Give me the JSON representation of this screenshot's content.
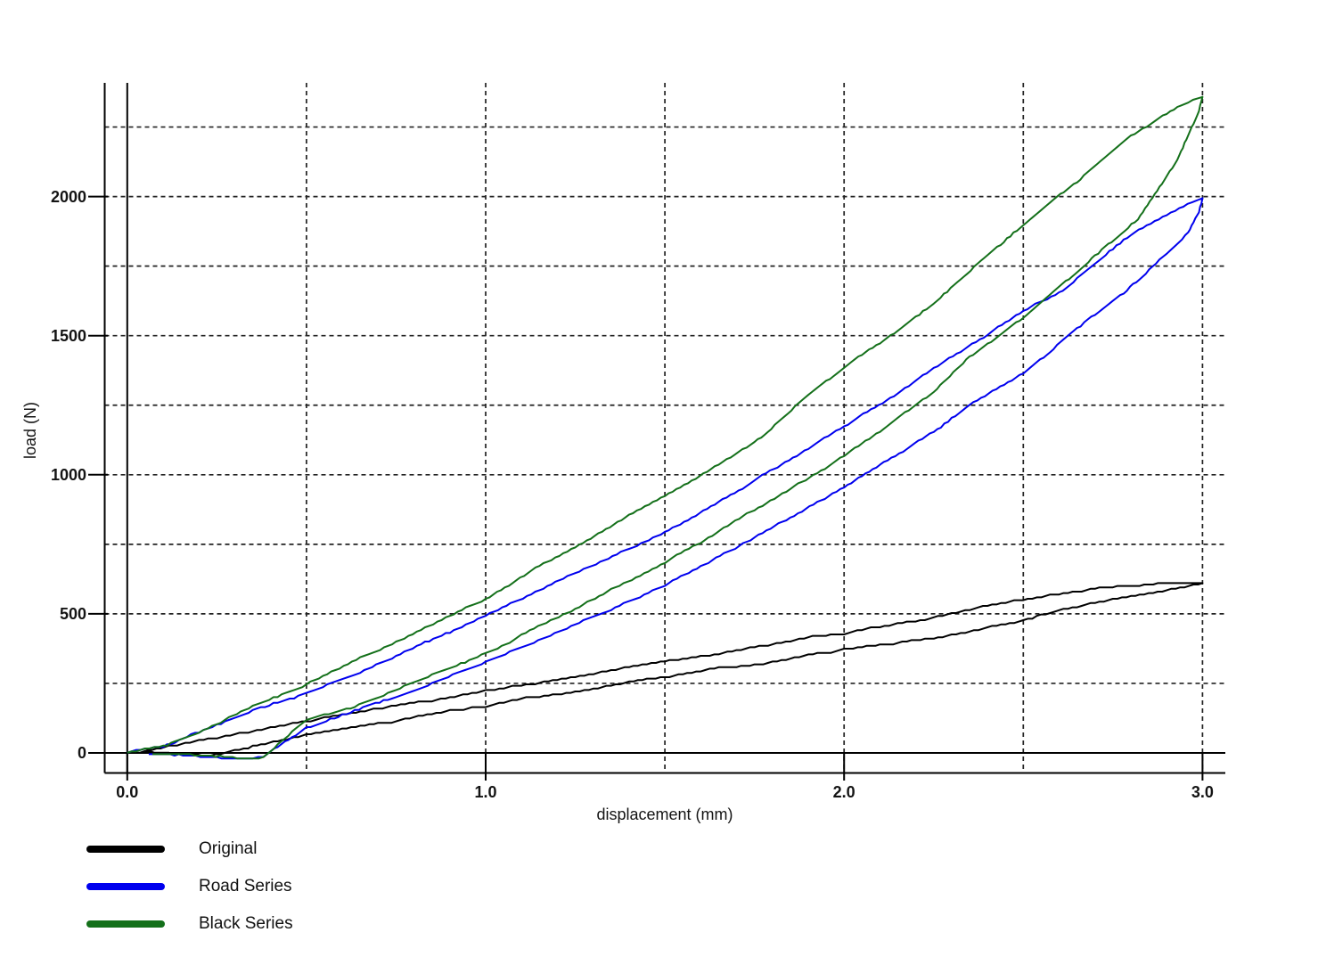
{
  "figure": {
    "background": "#ffffff",
    "axis_color": "#000000",
    "grid_color": "#222222",
    "text_color": "#141414"
  },
  "chart_data": {
    "type": "line",
    "title": "",
    "xlabel": "displacement (mm)",
    "ylabel": "load (N)",
    "xlim": [
      -0.065,
      3.06
    ],
    "ylim": [
      -74,
      2410
    ],
    "grid": "dashed",
    "x_major_ticks": [
      {
        "value": 0.0,
        "label": "0.0"
      },
      {
        "value": 1.0,
        "label": "1.0"
      },
      {
        "value": 2.0,
        "label": "2.0"
      },
      {
        "value": 3.0,
        "label": "3.0"
      }
    ],
    "y_major_ticks": [
      {
        "value": 0,
        "label": "0"
      },
      {
        "value": 500,
        "label": "500"
      },
      {
        "value": 1000,
        "label": "1000"
      },
      {
        "value": 1500,
        "label": "1500"
      },
      {
        "value": 2000,
        "label": "2000"
      }
    ],
    "x_gridlines": [
      0.5,
      1.0,
      1.5,
      2.0,
      2.5,
      3.0
    ],
    "y_gridlines": [
      250,
      500,
      750,
      1000,
      1250,
      1500,
      1750,
      2000,
      2250
    ],
    "legend_position": "below-left",
    "series": [
      {
        "name": "Original",
        "color": "#000000",
        "peak_load": 614,
        "loading": [
          [
            0,
            0
          ],
          [
            0.07,
            10
          ],
          [
            0.15,
            30
          ],
          [
            0.25,
            55
          ],
          [
            0.4,
            95
          ],
          [
            0.5,
            120
          ],
          [
            0.65,
            150
          ],
          [
            0.75,
            172
          ],
          [
            0.9,
            205
          ],
          [
            1.0,
            228
          ],
          [
            1.15,
            258
          ],
          [
            1.25,
            280
          ],
          [
            1.4,
            312
          ],
          [
            1.5,
            332
          ],
          [
            1.65,
            360
          ],
          [
            1.75,
            382
          ],
          [
            1.9,
            415
          ],
          [
            2.0,
            430
          ],
          [
            2.1,
            450
          ],
          [
            2.2,
            474
          ],
          [
            2.3,
            498
          ],
          [
            2.4,
            526
          ],
          [
            2.5,
            550
          ],
          [
            2.6,
            568
          ],
          [
            2.75,
            592
          ],
          [
            2.9,
            606
          ],
          [
            3.0,
            614
          ]
        ],
        "unloading": [
          [
            3.0,
            614
          ],
          [
            2.9,
            590
          ],
          [
            2.75,
            556
          ],
          [
            2.6,
            520
          ],
          [
            2.5,
            482
          ],
          [
            2.35,
            442
          ],
          [
            2.2,
            408
          ],
          [
            2.0,
            374
          ],
          [
            1.85,
            344
          ],
          [
            1.75,
            322
          ],
          [
            1.6,
            294
          ],
          [
            1.5,
            270
          ],
          [
            1.35,
            238
          ],
          [
            1.25,
            218
          ],
          [
            1.1,
            192
          ],
          [
            1.0,
            170
          ],
          [
            0.85,
            144
          ],
          [
            0.75,
            120
          ],
          [
            0.6,
            94
          ],
          [
            0.5,
            70
          ],
          [
            0.42,
            44
          ],
          [
            0.35,
            20
          ],
          [
            0.3,
            4
          ],
          [
            0.26,
            -8
          ],
          [
            0.22,
            -13
          ],
          [
            0.18,
            -12
          ],
          [
            0.13,
            -7
          ],
          [
            0.09,
            -3
          ],
          [
            0.05,
            0
          ]
        ]
      },
      {
        "name": "Road Series",
        "color": "#0000ee",
        "peak_load": 2000,
        "loading": [
          [
            0,
            0
          ],
          [
            0.1,
            25
          ],
          [
            0.2,
            70
          ],
          [
            0.25,
            95
          ],
          [
            0.35,
            150
          ],
          [
            0.5,
            215
          ],
          [
            0.65,
            295
          ],
          [
            0.75,
            355
          ],
          [
            0.9,
            440
          ],
          [
            1.0,
            500
          ],
          [
            1.15,
            590
          ],
          [
            1.25,
            650
          ],
          [
            1.4,
            740
          ],
          [
            1.5,
            800
          ],
          [
            1.65,
            905
          ],
          [
            1.75,
            985
          ],
          [
            1.9,
            1100
          ],
          [
            2.0,
            1180
          ],
          [
            2.15,
            1300
          ],
          [
            2.25,
            1390
          ],
          [
            2.4,
            1510
          ],
          [
            2.5,
            1595
          ],
          [
            2.6,
            1660
          ],
          [
            2.7,
            1760
          ],
          [
            2.8,
            1865
          ],
          [
            2.9,
            1940
          ],
          [
            2.97,
            1985
          ],
          [
            3.0,
            2000
          ]
        ],
        "unloading": [
          [
            3.0,
            2000
          ],
          [
            2.99,
            1950
          ],
          [
            2.96,
            1870
          ],
          [
            2.9,
            1795
          ],
          [
            2.86,
            1750
          ],
          [
            2.78,
            1655
          ],
          [
            2.65,
            1525
          ],
          [
            2.5,
            1360
          ],
          [
            2.35,
            1245
          ],
          [
            2.25,
            1150
          ],
          [
            2.1,
            1040
          ],
          [
            2.0,
            950
          ],
          [
            1.85,
            840
          ],
          [
            1.75,
            770
          ],
          [
            1.6,
            668
          ],
          [
            1.5,
            600
          ],
          [
            1.35,
            515
          ],
          [
            1.25,
            455
          ],
          [
            1.1,
            382
          ],
          [
            1.0,
            330
          ],
          [
            0.85,
            256
          ],
          [
            0.75,
            205
          ],
          [
            0.6,
            140
          ],
          [
            0.5,
            93
          ],
          [
            0.45,
            55
          ],
          [
            0.41,
            20
          ],
          [
            0.38,
            -8
          ],
          [
            0.35,
            -16
          ],
          [
            0.3,
            -16
          ],
          [
            0.25,
            -12
          ],
          [
            0.18,
            -7
          ],
          [
            0.12,
            -3
          ],
          [
            0.06,
            0
          ]
        ]
      },
      {
        "name": "Black Series",
        "color": "#14701a",
        "peak_load": 2360,
        "loading": [
          [
            0,
            0
          ],
          [
            0.1,
            30
          ],
          [
            0.2,
            80
          ],
          [
            0.25,
            110
          ],
          [
            0.35,
            175
          ],
          [
            0.5,
            250
          ],
          [
            0.65,
            345
          ],
          [
            0.75,
            405
          ],
          [
            0.9,
            500
          ],
          [
            1.0,
            560
          ],
          [
            1.15,
            675
          ],
          [
            1.25,
            745
          ],
          [
            1.4,
            860
          ],
          [
            1.5,
            930
          ],
          [
            1.65,
            1040
          ],
          [
            1.75,
            1120
          ],
          [
            1.9,
            1290
          ],
          [
            2.0,
            1380
          ],
          [
            2.15,
            1520
          ],
          [
            2.25,
            1620
          ],
          [
            2.4,
            1790
          ],
          [
            2.5,
            1900
          ],
          [
            2.65,
            2060
          ],
          [
            2.8,
            2225
          ],
          [
            2.9,
            2300
          ],
          [
            2.96,
            2345
          ],
          [
            3.0,
            2360
          ]
        ],
        "unloading": [
          [
            3.0,
            2360
          ],
          [
            2.99,
            2310
          ],
          [
            2.97,
            2255
          ],
          [
            2.93,
            2140
          ],
          [
            2.88,
            2040
          ],
          [
            2.82,
            1925
          ],
          [
            2.7,
            1790
          ],
          [
            2.6,
            1680
          ],
          [
            2.5,
            1570
          ],
          [
            2.35,
            1430
          ],
          [
            2.25,
            1305
          ],
          [
            2.1,
            1160
          ],
          [
            2.0,
            1070
          ],
          [
            1.85,
            950
          ],
          [
            1.75,
            870
          ],
          [
            1.6,
            755
          ],
          [
            1.5,
            680
          ],
          [
            1.35,
            585
          ],
          [
            1.25,
            510
          ],
          [
            1.1,
            420
          ],
          [
            1.0,
            352
          ],
          [
            0.85,
            275
          ],
          [
            0.75,
            220
          ],
          [
            0.6,
            150
          ],
          [
            0.5,
            114
          ],
          [
            0.45,
            62
          ],
          [
            0.41,
            18
          ],
          [
            0.38,
            -14
          ],
          [
            0.33,
            -20
          ],
          [
            0.27,
            -13
          ],
          [
            0.2,
            -8
          ],
          [
            0.13,
            -3
          ],
          [
            0.07,
            0
          ]
        ]
      }
    ]
  },
  "legend": {
    "items": [
      {
        "label": "Original",
        "color": "#000000"
      },
      {
        "label": "Road Series",
        "color": "#0000ee"
      },
      {
        "label": "Black Series",
        "color": "#14701a"
      }
    ]
  }
}
